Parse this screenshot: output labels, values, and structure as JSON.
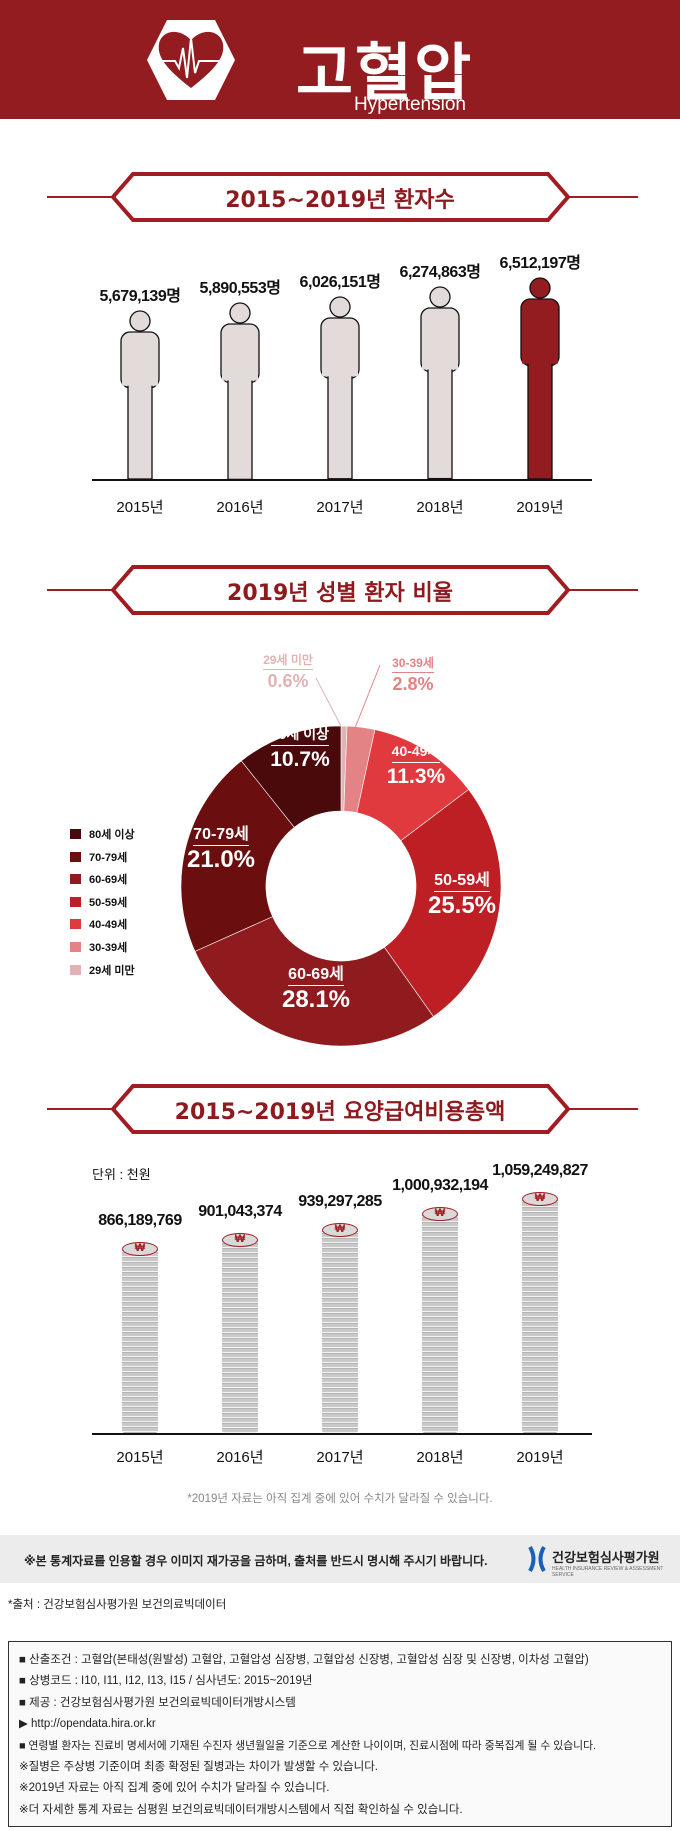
{
  "header": {
    "title": "고혈압",
    "subtitle": "Hypertension"
  },
  "colors": {
    "brand": "#921c20",
    "person": "#e3dada",
    "highlight": "#921c20"
  },
  "section1": {
    "title": "2015~2019년 환자수"
  },
  "section2": {
    "title": "2019년 성별 환자 비율"
  },
  "section3": {
    "title": "2015~2019년 요양급여비용총액",
    "unit": "단위 : 천원",
    "coin_symbol": "₩"
  },
  "note": "*2019년 자료는 아직 집계 중에 있어 수치가 달라질 수 있습니다.",
  "notice": {
    "text": "※본 통계자료를 인용할 경우 이미지 재가공을 금하며, 출처를 반드시 명시해 주시기 바랍니다.",
    "logo_name": "건강보험심사평가원",
    "logo_sub": "HEALTH INSURANCE REVIEW & ASSESSMENT SERVICE"
  },
  "source": "*출처 : 건강보험심사평가원 보건의료빅데이터",
  "info_lines": [
    "■ 산출조건 : 고혈압(본태성(원발성) 고혈압, 고혈압성 심장병, 고혈압성 신장병, 고혈압성 심장 및 신장병, 이차성 고혈압)",
    "■ 상병코드 : I10, I11, I12, I13, I15 / 심사년도: 2015~2019년",
    "■ 제공 : 건강보험심사평가원 보건의료빅데이터개방시스템",
    "▶ http://opendata.hira.or.kr",
    "■ 연령별 환자는 진료비 명세서에 기재된 수진자 생년월일을 기준으로 계산한 나이이며, 진료시점에 따라 중복집계 될 수 있습니다.",
    "※질병은 주상병 기준이며 최종 확정된 질병과는 차이가 발생할 수 있습니다.",
    "※2019년 자료는 아직 집계 중에 있어 수치가 달라질 수 있습니다.",
    "※더 자세한 통계 자료는 심평원 보건의료빅데이터개방시스템에서 직접 확인하실 수 있습니다."
  ],
  "chart_data": [
    {
      "type": "bar",
      "title": "2015~2019년 환자수",
      "categories": [
        "2015년",
        "2016년",
        "2017년",
        "2018년",
        "2019년"
      ],
      "values": [
        5679139,
        5890553,
        6026151,
        6274863,
        6512197
      ],
      "labels": [
        "5,679,139명",
        "5,890,553명",
        "6,026,151명",
        "6,274,863명",
        "6,512,197명"
      ],
      "unit": "명"
    },
    {
      "type": "pie",
      "title": "2019년 성별 환자 비율",
      "categories": [
        "29세 미만",
        "30-39세",
        "40-49세",
        "50-59세",
        "60-69세",
        "70-79세",
        "80세 이상"
      ],
      "values": [
        0.6,
        2.8,
        11.3,
        25.5,
        28.1,
        21.0,
        10.7
      ],
      "labels": [
        "0.6%",
        "2.8%",
        "11.3%",
        "25.5%",
        "28.1%",
        "21.0%",
        "10.7%"
      ],
      "colors": [
        "#e2b3b5",
        "#e48386",
        "#e0393e",
        "#bd1f25",
        "#8f1b1f",
        "#6b0e10",
        "#4a0a0b"
      ],
      "legend_order": [
        "80세 이상",
        "70-79세",
        "60-69세",
        "50-59세",
        "40-49세",
        "30-39세",
        "29세 미만"
      ],
      "legend": "left"
    },
    {
      "type": "bar",
      "title": "2015~2019년 요양급여비용총액",
      "ylabel": "단위 : 천원",
      "categories": [
        "2015년",
        "2016년",
        "2017년",
        "2018년",
        "2019년"
      ],
      "values": [
        866189769,
        901043374,
        939297285,
        1000932194,
        1059249827
      ],
      "labels": [
        "866,189,769",
        "901,043,374",
        "939,297,285",
        "1,000,932,194",
        "1,059,249,827"
      ]
    }
  ]
}
